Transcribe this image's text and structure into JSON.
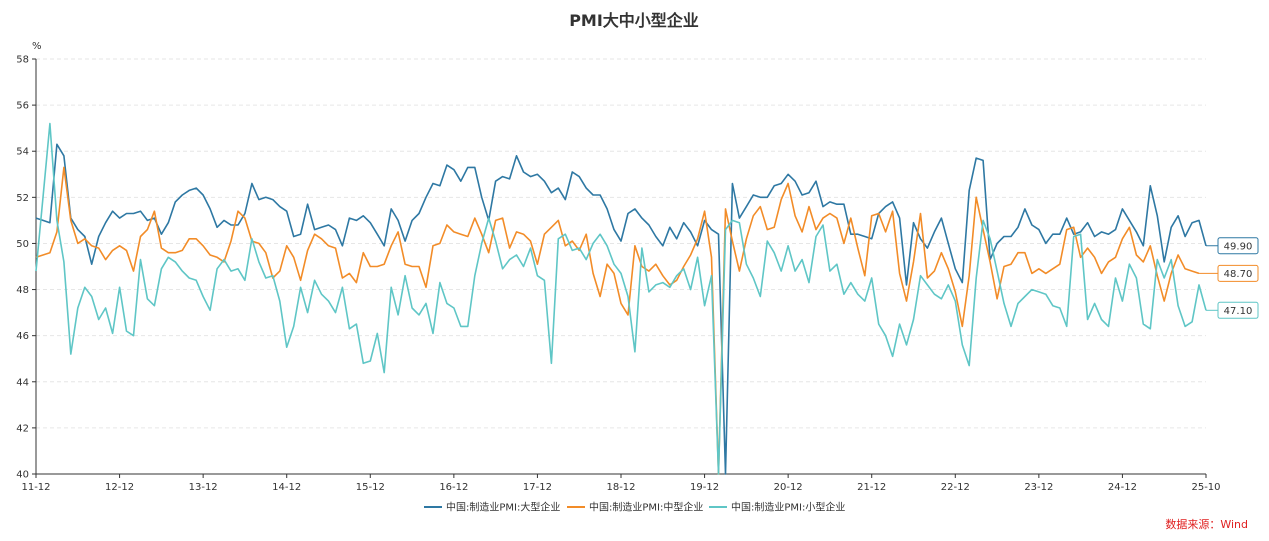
{
  "chart_data": {
    "type": "line",
    "title": "PMI大中小型企业",
    "ylabel": "%",
    "ylim": [
      40,
      58
    ],
    "yticks": [
      40,
      42,
      44,
      46,
      48,
      50,
      52,
      54,
      56,
      58
    ],
    "xticks": [
      "11-12",
      "12-12",
      "13-12",
      "14-12",
      "15-12",
      "16-12",
      "17-12",
      "18-12",
      "19-12",
      "20-12",
      "21-12",
      "22-12",
      "23-12",
      "24-12",
      "25-10"
    ],
    "grid": true,
    "legend_position": "bottom",
    "source": "数据来源：Wind",
    "series": [
      {
        "name": "中国:制造业PMI:大型企业",
        "color": "#2e78a3",
        "end_label": "49.90",
        "values": [
          51.1,
          51.0,
          50.9,
          54.3,
          53.8,
          51.1,
          50.6,
          50.3,
          49.1,
          50.3,
          50.9,
          51.4,
          51.1,
          51.3,
          51.3,
          51.4,
          51.0,
          51.1,
          50.4,
          50.9,
          51.8,
          52.1,
          52.3,
          52.4,
          52.1,
          51.5,
          50.7,
          51.0,
          50.8,
          50.8,
          51.3,
          52.6,
          51.9,
          52.0,
          51.9,
          51.6,
          51.4,
          50.3,
          50.4,
          51.7,
          50.6,
          50.7,
          50.8,
          50.6,
          49.9,
          51.1,
          51.0,
          51.2,
          50.9,
          50.4,
          49.9,
          51.5,
          51.0,
          50.1,
          51.0,
          51.3,
          52.0,
          52.6,
          52.5,
          53.4,
          53.2,
          52.7,
          53.3,
          53.3,
          52.0,
          51.0,
          52.7,
          52.9,
          52.8,
          53.8,
          53.1,
          52.9,
          53.0,
          52.7,
          52.2,
          52.4,
          51.9,
          53.1,
          52.9,
          52.4,
          52.1,
          52.1,
          51.5,
          50.6,
          50.1,
          51.3,
          51.5,
          51.1,
          50.8,
          50.3,
          49.9,
          50.7,
          50.2,
          50.9,
          50.5,
          49.9,
          51.0,
          50.6,
          50.4,
          40.0,
          52.6,
          51.1,
          51.6,
          52.1,
          52.0,
          52.0,
          52.5,
          52.6,
          53.0,
          52.7,
          52.1,
          52.2,
          52.7,
          51.6,
          51.8,
          51.7,
          51.7,
          50.4,
          50.4,
          50.3,
          50.2,
          51.3,
          51.6,
          51.8,
          51.1,
          48.2,
          50.9,
          50.2,
          49.8,
          50.5,
          51.1,
          50.0,
          48.9,
          48.3,
          52.3,
          53.7,
          53.6,
          49.3,
          50.0,
          50.3,
          50.3,
          50.7,
          51.5,
          50.8,
          50.6,
          50.0,
          50.4,
          50.4,
          51.1,
          50.4,
          50.5,
          50.9,
          50.3,
          50.5,
          50.4,
          50.6,
          51.5,
          51.0,
          50.5,
          49.9,
          52.5,
          51.2,
          49.2,
          50.7,
          51.2,
          50.3,
          50.9,
          51.0,
          49.9
        ]
      },
      {
        "name": "中国:制造业PMI:中型企业",
        "color": "#f28c28",
        "end_label": "48.70",
        "values": [
          49.4,
          49.5,
          49.6,
          50.5,
          53.3,
          51.0,
          50.0,
          50.2,
          49.9,
          49.8,
          49.3,
          49.7,
          49.9,
          49.7,
          48.8,
          50.3,
          50.6,
          51.4,
          49.8,
          49.6,
          49.6,
          49.7,
          50.2,
          50.2,
          49.9,
          49.5,
          49.4,
          49.2,
          50.1,
          51.4,
          51.1,
          50.1,
          50.0,
          49.6,
          48.5,
          48.8,
          49.9,
          49.4,
          48.4,
          49.7,
          50.4,
          50.2,
          49.9,
          49.8,
          48.5,
          48.7,
          48.3,
          49.6,
          49.0,
          49.0,
          49.1,
          49.9,
          50.5,
          49.1,
          49.0,
          49.0,
          48.1,
          49.9,
          50.0,
          50.8,
          50.5,
          50.4,
          50.3,
          51.1,
          50.4,
          49.6,
          51.0,
          51.1,
          49.8,
          50.5,
          50.4,
          50.1,
          49.1,
          50.4,
          50.7,
          51.0,
          49.9,
          50.1,
          49.7,
          50.4,
          48.7,
          47.7,
          49.1,
          48.7,
          47.4,
          46.9,
          49.9,
          49.0,
          48.8,
          49.1,
          48.6,
          48.2,
          48.4,
          49.0,
          49.5,
          50.2,
          51.4,
          49.4,
          40.0,
          51.5,
          50.1,
          48.8,
          50.2,
          51.2,
          51.6,
          50.6,
          50.7,
          51.9,
          52.6,
          51.2,
          50.5,
          51.6,
          50.6,
          51.1,
          51.3,
          51.1,
          50.0,
          51.1,
          49.8,
          48.6,
          51.2,
          51.3,
          50.5,
          51.4,
          48.7,
          47.5,
          49.2,
          51.3,
          48.5,
          48.8,
          49.6,
          48.9,
          47.9,
          46.4,
          48.6,
          52.0,
          50.6,
          49.2,
          47.6,
          49.0,
          49.1,
          49.6,
          49.6,
          48.7,
          48.9,
          48.7,
          48.9,
          49.1,
          50.6,
          50.7,
          49.4,
          49.8,
          49.4,
          48.7,
          49.2,
          49.4,
          50.2,
          50.7,
          49.5,
          49.2,
          49.9,
          48.6,
          47.5,
          48.7,
          49.5,
          48.9,
          48.8,
          48.7
        ]
      },
      {
        "name": "中国:制造业PMI:小型企业",
        "color": "#5fc6c6",
        "end_label": "47.10",
        "values": [
          48.8,
          52.0,
          55.2,
          51.0,
          49.2,
          45.2,
          47.2,
          48.1,
          47.7,
          46.7,
          47.2,
          46.1,
          48.1,
          46.2,
          46.0,
          49.3,
          47.6,
          47.3,
          48.9,
          49.4,
          49.2,
          48.8,
          48.5,
          48.4,
          47.7,
          47.1,
          48.9,
          49.3,
          48.8,
          48.9,
          48.4,
          50.2,
          49.2,
          48.5,
          48.6,
          47.5,
          45.5,
          46.4,
          48.1,
          47.0,
          48.4,
          47.8,
          47.5,
          47.0,
          48.1,
          46.3,
          46.5,
          44.8,
          44.9,
          46.1,
          44.4,
          48.1,
          46.9,
          48.6,
          47.2,
          46.9,
          47.4,
          46.1,
          48.3,
          47.4,
          47.2,
          46.4,
          46.4,
          48.6,
          50.0,
          51.1,
          50.1,
          48.9,
          49.3,
          49.5,
          49.0,
          49.8,
          48.6,
          48.4,
          44.8,
          50.2,
          50.4,
          49.7,
          49.8,
          49.3,
          50.0,
          50.4,
          49.9,
          49.1,
          48.7,
          47.7,
          45.3,
          49.8,
          47.9,
          48.2,
          48.3,
          48.1,
          48.6,
          48.9,
          48.0,
          49.4,
          47.3,
          48.6,
          40.0,
          50.6,
          51.0,
          50.9,
          49.1,
          48.5,
          47.7,
          50.1,
          49.6,
          48.8,
          49.9,
          48.8,
          49.3,
          48.3,
          50.3,
          50.8,
          48.8,
          49.1,
          47.8,
          48.3,
          47.8,
          47.5,
          48.5,
          46.5,
          46.0,
          45.1,
          46.5,
          45.6,
          46.7,
          48.6,
          48.2,
          47.8,
          47.6,
          48.2,
          47.5,
          45.6,
          44.7,
          48.5,
          51.0,
          50.2,
          48.8,
          47.4,
          46.4,
          47.4,
          47.7,
          48.0,
          47.9,
          47.8,
          47.3,
          47.2,
          46.4,
          50.3,
          50.4,
          46.7,
          47.4,
          46.7,
          46.4,
          48.5,
          47.5,
          49.1,
          48.5,
          46.5,
          46.3,
          49.3,
          48.5,
          49.3,
          47.3,
          46.4,
          46.6,
          48.2,
          47.1
        ]
      }
    ]
  }
}
